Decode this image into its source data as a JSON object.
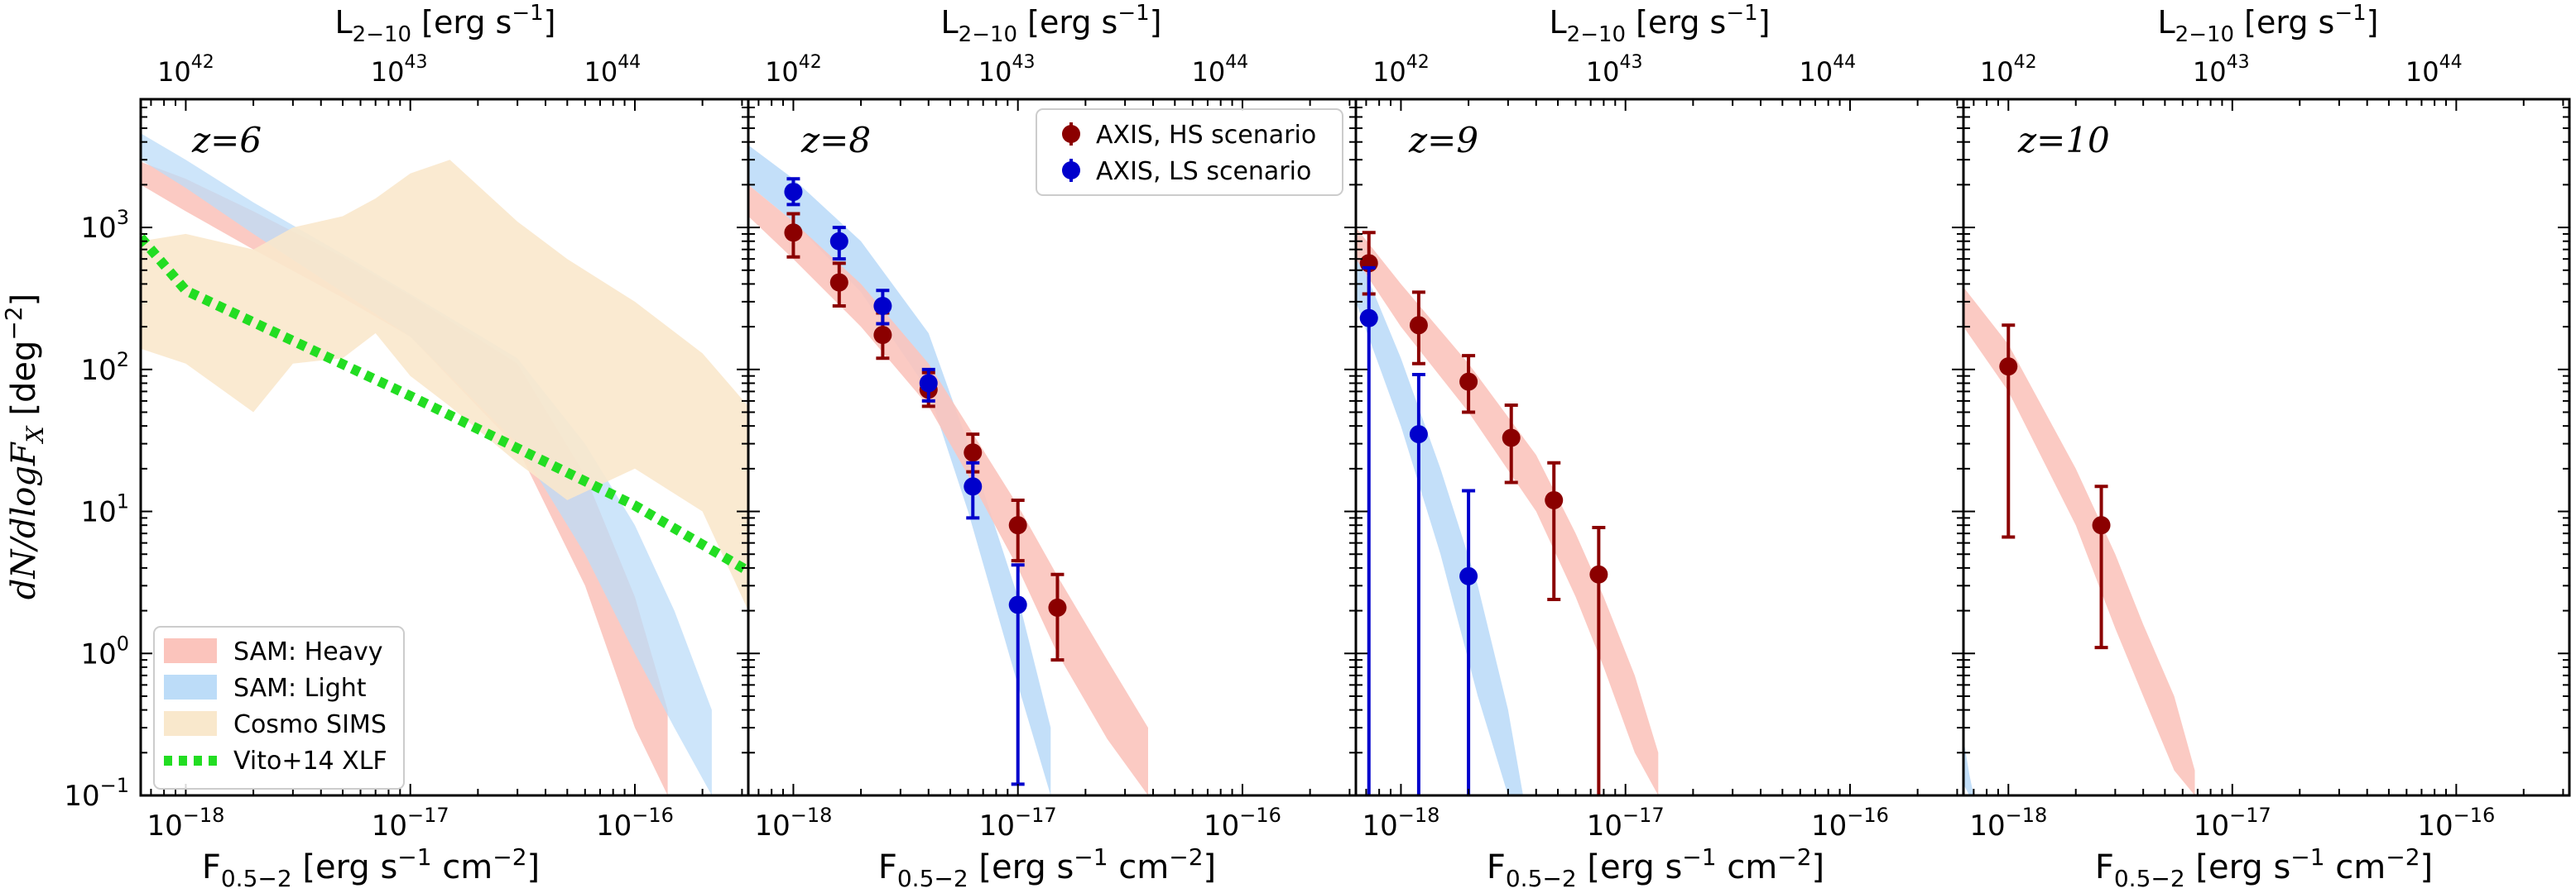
{
  "figure": {
    "ylabel": "dN/dlogF",
    "ylabel_sub": "X",
    "ylabel_unit": " [deg",
    "ylabel_unit_exp": "−2",
    "ylabel_unit_close": "]",
    "xlabel_main": "F",
    "xlabel_sub": "0.5−2",
    "xlabel_unit": " [erg s",
    "xlabel_unit_exp1": "−1",
    "xlabel_unit_mid": " cm",
    "xlabel_unit_exp2": "−2",
    "xlabel_unit_close": "]",
    "top_label_main": "L",
    "top_label_sub": "2−10",
    "top_label_unit": " [erg s",
    "top_label_exp": "−1",
    "top_label_close": "]"
  },
  "colors": {
    "sam_heavy": "#fbc4bc",
    "sam_light": "#bcdcf8",
    "cosmo": "#f9e8cc",
    "overlap": "#b3b1d6",
    "vito": "#22dd22",
    "hs": "#8b0000",
    "ls": "#0000cc"
  },
  "legend_left": [
    {
      "label": "SAM: Heavy",
      "key": "sam_heavy"
    },
    {
      "label": "SAM: Light",
      "key": "sam_light"
    },
    {
      "label": "Cosmo SIMS",
      "key": "cosmo"
    },
    {
      "label": "Vito+14 XLF",
      "key": "vito"
    }
  ],
  "legend_right": [
    {
      "label": "AXIS, HS scenario",
      "key": "hs"
    },
    {
      "label": "AXIS, LS scenario",
      "key": "ls"
    }
  ],
  "chart_data": [
    {
      "type": "area",
      "panel_label": "z=6",
      "x_scale": "log",
      "y_scale": "log",
      "xlim": [
        6.3e-19,
        3.2e-16
      ],
      "ylim": [
        0.1,
        8000
      ],
      "x_ticks": [
        "10^-18",
        "10^-17",
        "10^-16"
      ],
      "y_ticks": [
        "10^-1",
        "10^0",
        "10^1",
        "10^2",
        "10^3"
      ],
      "top_x_ticks": [
        "10^42",
        "10^43",
        "10^44"
      ],
      "bands": [
        {
          "name": "SAM: Heavy",
          "key": "sam_heavy",
          "x": [
            6.3e-19,
            1e-18,
            2e-18,
            5e-18,
            1e-17,
            3e-17,
            6e-17,
            1e-16,
            1.4e-16
          ],
          "lower": [
            2000,
            1300,
            700,
            320,
            170,
            28,
            3,
            0.3,
            0.1
          ],
          "upper": [
            2900,
            2200,
            1300,
            620,
            330,
            110,
            18,
            2.5,
            0.4
          ]
        },
        {
          "name": "SAM: Light",
          "key": "sam_light",
          "x": [
            6.3e-19,
            1e-18,
            2e-18,
            5e-18,
            1e-17,
            3e-17,
            6e-17,
            1e-16,
            1.5e-16,
            2.2e-16
          ],
          "lower": [
            3000,
            1900,
            900,
            350,
            170,
            30,
            5,
            1,
            0.3,
            0.1
          ],
          "upper": [
            4600,
            3000,
            1500,
            650,
            340,
            120,
            30,
            8,
            2,
            0.4
          ]
        },
        {
          "name": "Cosmo SIMS",
          "key": "cosmo",
          "x": [
            6.3e-19,
            1e-18,
            2e-18,
            3e-18,
            5e-18,
            7e-18,
            1e-17,
            1.5e-17,
            3e-17,
            5e-17,
            1e-16,
            2e-16,
            3.2e-16
          ],
          "lower": [
            140,
            110,
            50,
            110,
            120,
            180,
            90,
            55,
            22,
            12,
            20,
            10,
            2
          ],
          "upper": [
            800,
            900,
            700,
            1000,
            1200,
            1600,
            2400,
            3000,
            1100,
            600,
            300,
            130,
            55
          ]
        }
      ],
      "series": [
        {
          "name": "Vito+14 XLF",
          "key": "vito",
          "style": "dotted",
          "x": [
            6.3e-19,
            1e-18,
            1e-17,
            1e-16,
            3.2e-16
          ],
          "values": [
            850,
            360,
            65,
            11,
            3.8
          ]
        }
      ]
    },
    {
      "type": "scatter",
      "panel_label": "z=8",
      "x_scale": "log",
      "y_scale": "log",
      "xlim": [
        6.3e-19,
        3.2e-16
      ],
      "ylim": [
        0.1,
        8000
      ],
      "x_ticks": [
        "10^-18",
        "10^-17",
        "10^-16"
      ],
      "top_x_ticks": [
        "10^42",
        "10^43",
        "10^44"
      ],
      "bands": [
        {
          "name": "SAM: Light",
          "key": "sam_light",
          "x": [
            6.3e-19,
            1e-18,
            2e-18,
            4e-18,
            6e-18,
            1e-17,
            1.4e-17
          ],
          "lower": [
            2000,
            1100,
            350,
            70,
            10,
            0.6,
            0.1
          ],
          "upper": [
            3800,
            2200,
            800,
            180,
            30,
            2.5,
            0.3
          ]
        },
        {
          "name": "SAM: Heavy",
          "key": "sam_heavy",
          "x": [
            6.3e-19,
            1e-18,
            2e-18,
            4e-18,
            6e-18,
            1e-17,
            1.5e-17,
            2.5e-17,
            3.8e-17
          ],
          "lower": [
            1200,
            600,
            200,
            55,
            18,
            4,
            1,
            0.25,
            0.1
          ],
          "upper": [
            2000,
            1100,
            400,
            110,
            40,
            11,
            3.5,
            0.9,
            0.3
          ]
        }
      ],
      "series": [
        {
          "name": "AXIS, HS scenario",
          "key": "hs",
          "x": [
            1e-18,
            1.6e-18,
            2.5e-18,
            4e-18,
            6.3e-18,
            1e-17,
            1.5e-17
          ],
          "values": [
            920,
            410,
            175,
            72,
            26,
            8,
            2.1
          ],
          "err_low": [
            620,
            280,
            120,
            55,
            19,
            4.5,
            0.9
          ],
          "err_high": [
            1250,
            560,
            250,
            95,
            35,
            12,
            3.6
          ]
        },
        {
          "name": "AXIS, LS scenario",
          "key": "ls",
          "x": [
            1e-18,
            1.6e-18,
            2.5e-18,
            4e-18,
            6.3e-18,
            1e-17
          ],
          "values": [
            1780,
            800,
            280,
            80,
            15,
            2.2
          ],
          "err_low": [
            1450,
            600,
            210,
            60,
            9,
            0.12
          ],
          "err_high": [
            2200,
            1000,
            360,
            100,
            22,
            4.2
          ]
        }
      ]
    },
    {
      "type": "scatter",
      "panel_label": "z=9",
      "x_scale": "log",
      "y_scale": "log",
      "xlim": [
        6.3e-19,
        3.2e-16
      ],
      "ylim": [
        0.1,
        8000
      ],
      "x_ticks": [
        "10^-18",
        "10^-17",
        "10^-16"
      ],
      "top_x_ticks": [
        "10^42",
        "10^43",
        "10^44"
      ],
      "bands": [
        {
          "name": "SAM: Light",
          "key": "sam_light",
          "x": [
            6.3e-19,
            1e-18,
            1.5e-18,
            2.2e-18,
            3e-18,
            3.5e-18
          ],
          "lower": [
            300,
            40,
            5,
            0.5,
            0.1,
            0.1
          ],
          "upper": [
            700,
            120,
            20,
            3,
            0.4,
            0.1
          ]
        },
        {
          "name": "SAM: Heavy",
          "key": "sam_heavy",
          "x": [
            6.3e-19,
            1e-18,
            2e-18,
            4e-18,
            6e-18,
            8e-18,
            1.1e-17,
            1.4e-17
          ],
          "lower": [
            600,
            200,
            50,
            10,
            2.5,
            0.8,
            0.2,
            0.1
          ],
          "upper": [
            1000,
            400,
            110,
            25,
            7,
            2.5,
            0.7,
            0.2
          ]
        }
      ],
      "series": [
        {
          "name": "AXIS, HS scenario",
          "key": "hs",
          "x": [
            7.2e-19,
            1.2e-18,
            2e-18,
            3.1e-18,
            4.8e-18,
            7.6e-18
          ],
          "values": [
            560,
            205,
            82,
            33,
            12,
            3.6
          ],
          "err_low": [
            340,
            110,
            50,
            16,
            2.4,
            0.1
          ],
          "err_high": [
            920,
            350,
            125,
            56,
            22,
            7.7
          ]
        },
        {
          "name": "AXIS, LS scenario",
          "key": "ls",
          "x": [
            7.2e-19,
            1.2e-18,
            2e-18
          ],
          "values": [
            230,
            35,
            3.5
          ],
          "err_low": [
            0.1,
            0.1,
            0.1
          ],
          "err_high": [
            520,
            92,
            14
          ]
        }
      ]
    },
    {
      "type": "scatter",
      "panel_label": "z=10",
      "x_scale": "log",
      "y_scale": "log",
      "xlim": [
        6.3e-19,
        3.2e-16
      ],
      "ylim": [
        0.1,
        8000
      ],
      "x_ticks": [
        "10^-18",
        "10^-17",
        "10^-16"
      ],
      "top_x_ticks": [
        "10^42",
        "10^43",
        "10^44"
      ],
      "bands": [
        {
          "name": "SAM: Light",
          "key": "sam_light",
          "x": [
            6.3e-19,
            6.7e-19,
            7e-19
          ],
          "lower": [
            0.12,
            0.1,
            0.1
          ],
          "upper": [
            0.25,
            0.14,
            0.1
          ]
        },
        {
          "name": "SAM: Heavy",
          "key": "sam_heavy",
          "x": [
            6.3e-19,
            1e-18,
            2e-18,
            3e-18,
            4e-18,
            5.5e-18,
            6.8e-18
          ],
          "lower": [
            200,
            70,
            8,
            1.5,
            0.5,
            0.15,
            0.1
          ],
          "upper": [
            380,
            150,
            20,
            5,
            1.6,
            0.5,
            0.15
          ]
        }
      ],
      "series": [
        {
          "name": "AXIS, HS scenario",
          "key": "hs",
          "x": [
            1e-18,
            2.6e-18
          ],
          "values": [
            105,
            8
          ],
          "err_low": [
            6.6,
            1.1
          ],
          "err_high": [
            205,
            15
          ]
        }
      ]
    }
  ]
}
